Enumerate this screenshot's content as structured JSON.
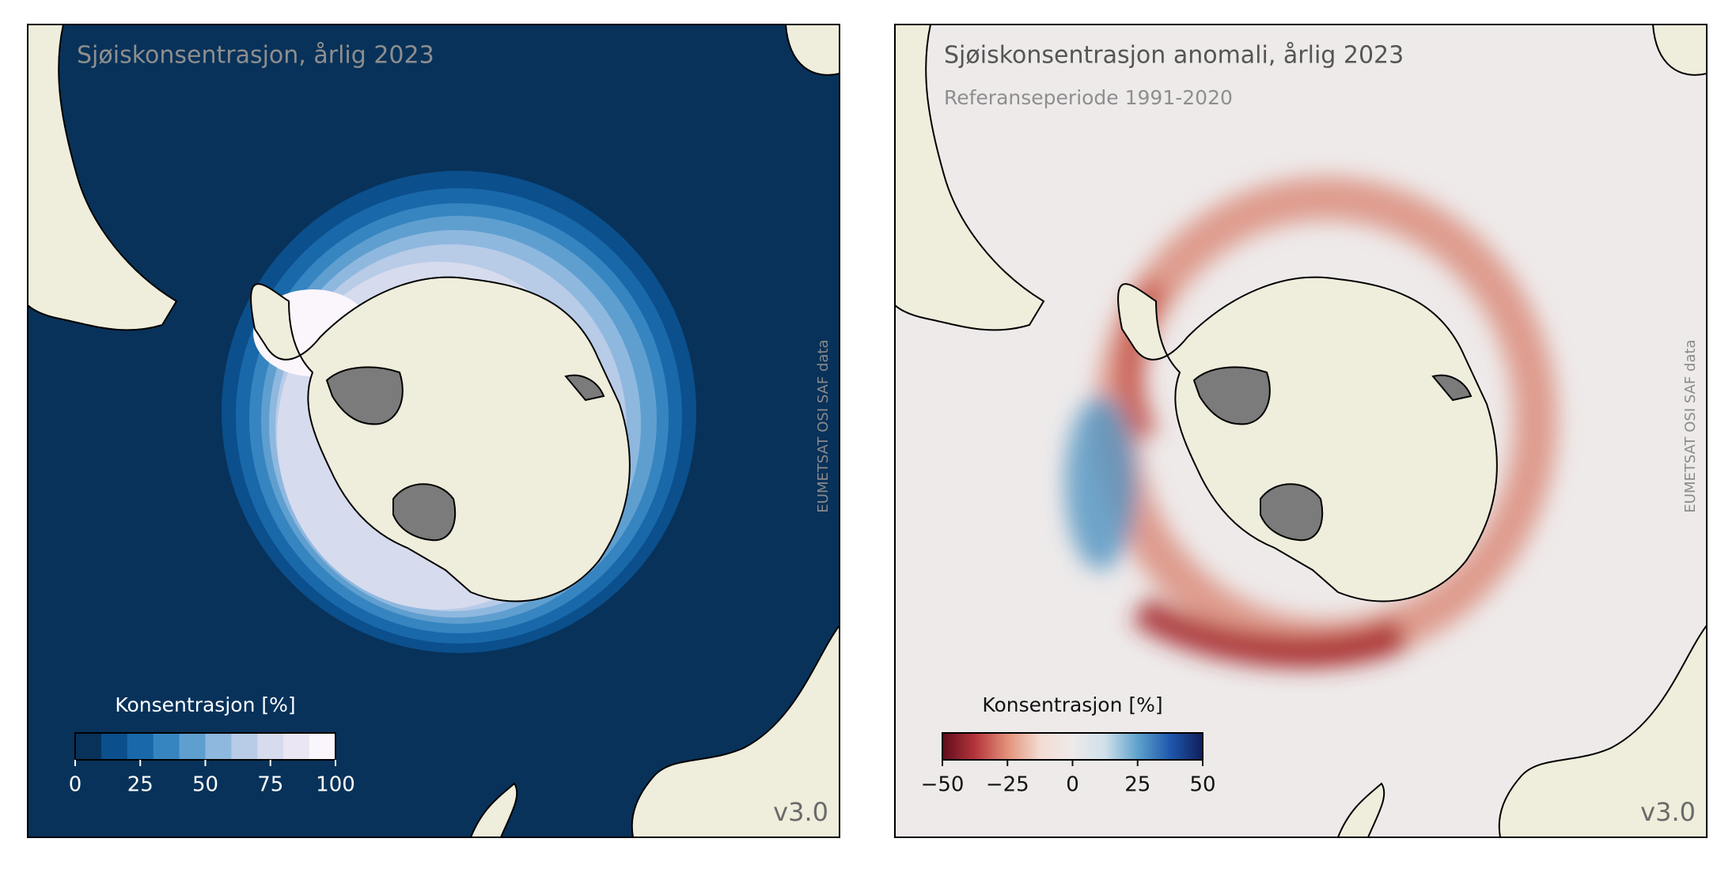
{
  "panels": [
    {
      "title": "Sjøiskonsentrasjon, årlig 2023",
      "credit": "EUMETSAT OSI SAF data",
      "version": "v3.0",
      "colorbar": {
        "label": "Konsentrasjon [%]",
        "lim": [
          0,
          100
        ],
        "ticks": [
          0,
          25,
          50,
          75,
          100
        ],
        "discrete": true,
        "colors": [
          "#08325a",
          "#0b4f8c",
          "#1968aa",
          "#3685c0",
          "#5f9fd0",
          "#8fb8df",
          "#b8cbe7",
          "#d6dbee",
          "#ebe6f3",
          "#fbf6fb"
        ]
      }
    },
    {
      "title": "Sjøiskonsentrasjon anomali, årlig 2023",
      "subtitle": "Referanseperiode 1991-2020",
      "credit": "EUMETSAT OSI SAF data",
      "version": "v3.0",
      "colorbar": {
        "label": "Konsentrasjon [%]",
        "lim": [
          -50,
          50
        ],
        "discrete": false,
        "ticks": [
          {
            "value": -50,
            "label": "−50"
          },
          {
            "value": -25,
            "label": "−25"
          },
          0,
          25,
          50
        ],
        "colors": [
          "#5e0c1c",
          "#b4353a",
          "#e3917a",
          "#f3dcd2",
          "#eeeaea",
          "#cfe0ea",
          "#5fa2cc",
          "#1e58ad",
          "#101e5a"
        ]
      }
    }
  ]
}
